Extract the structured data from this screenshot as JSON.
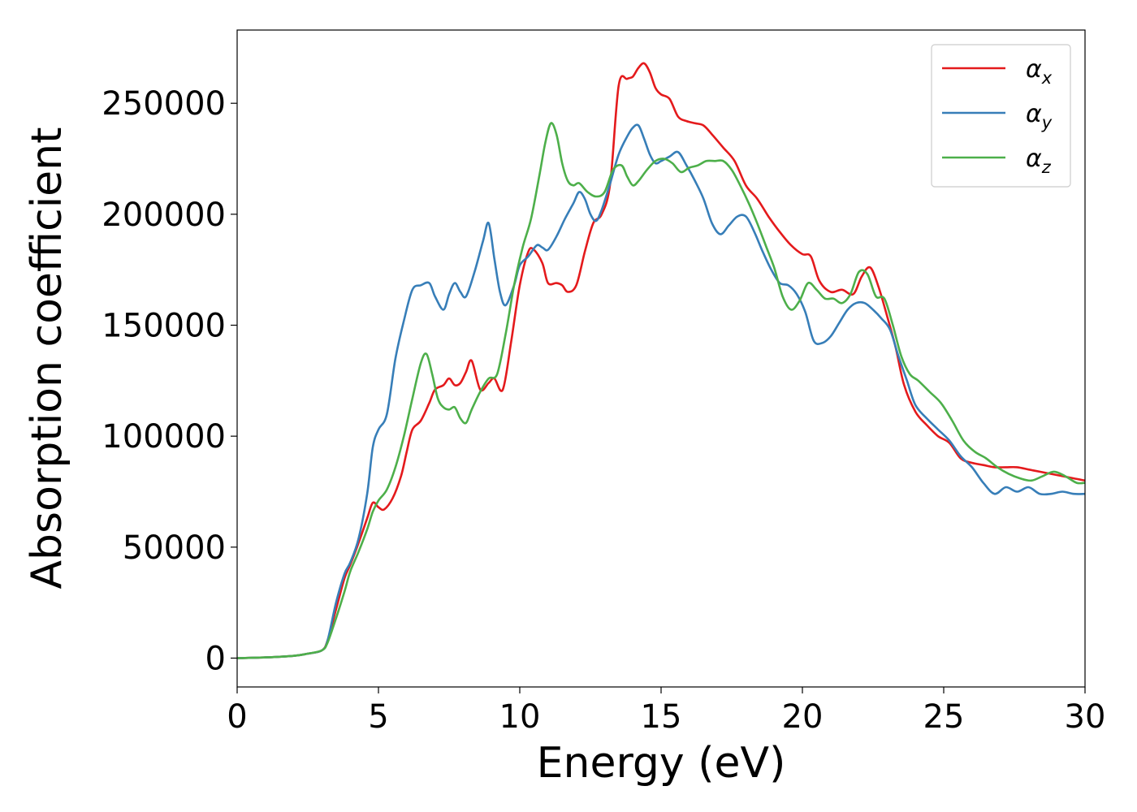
{
  "chart_data": {
    "type": "line",
    "xlabel": "Energy (eV)",
    "ylabel": "Absorption coefficient",
    "xlim": [
      0,
      30
    ],
    "ylim": [
      -13000,
      283000
    ],
    "xticks": [
      0,
      5,
      10,
      15,
      20,
      25,
      30
    ],
    "yticks": [
      0,
      50000,
      100000,
      150000,
      200000,
      250000
    ],
    "grid": false,
    "legend_position": "top-right",
    "series": [
      {
        "name": "α",
        "subscript": "x",
        "color": "#e41a1c",
        "x": [
          0,
          1,
          2,
          2.5,
          3,
          3.2,
          3.5,
          3.8,
          4.0,
          4.3,
          4.6,
          4.8,
          5.0,
          5.2,
          5.5,
          5.8,
          6.0,
          6.2,
          6.5,
          6.8,
          7.0,
          7.3,
          7.5,
          7.7,
          7.9,
          8.1,
          8.3,
          8.6,
          8.9,
          9.1,
          9.4,
          9.7,
          10.0,
          10.3,
          10.5,
          10.8,
          11.0,
          11.3,
          11.5,
          11.7,
          12.0,
          12.3,
          12.6,
          12.9,
          13.2,
          13.5,
          13.8,
          14.0,
          14.2,
          14.4,
          14.6,
          14.8,
          15.0,
          15.3,
          15.6,
          15.9,
          16.2,
          16.5,
          16.8,
          17.2,
          17.6,
          18.0,
          18.4,
          18.8,
          19.2,
          19.6,
          20.0,
          20.3,
          20.6,
          21.0,
          21.4,
          21.8,
          22.1,
          22.4,
          22.7,
          23.0,
          23.3,
          23.6,
          24.0,
          24.4,
          24.8,
          25.2,
          25.6,
          26.0,
          26.4,
          26.8,
          27.2,
          27.6,
          28.0,
          28.4,
          28.8,
          29.2,
          29.6,
          30.0
        ],
        "values": [
          0,
          300,
          1000,
          2000,
          3500,
          8000,
          22000,
          36000,
          42000,
          52000,
          63000,
          70000,
          68000,
          67000,
          72000,
          82000,
          93000,
          103000,
          107000,
          115000,
          121000,
          123000,
          126000,
          123000,
          124000,
          129000,
          134000,
          121000,
          124000,
          126000,
          121000,
          143000,
          168000,
          183000,
          184000,
          178000,
          169000,
          169000,
          168000,
          165000,
          168000,
          183000,
          196000,
          200000,
          214000,
          258000,
          261000,
          262000,
          266000,
          268000,
          264000,
          257000,
          254000,
          252000,
          244000,
          242000,
          241000,
          240000,
          236000,
          230000,
          224000,
          213000,
          207000,
          199000,
          192000,
          186000,
          182000,
          181000,
          170000,
          165000,
          166000,
          164000,
          172000,
          176000,
          167000,
          154000,
          140000,
          123000,
          111000,
          105000,
          100000,
          97000,
          90000,
          88000,
          87000,
          86000,
          86000,
          86000,
          85000,
          84000,
          83000,
          82000,
          81000,
          80000
        ]
      },
      {
        "name": "α",
        "subscript": "y",
        "color": "#377eb8",
        "x": [
          0,
          1,
          2,
          2.5,
          3,
          3.2,
          3.5,
          3.8,
          4.0,
          4.3,
          4.6,
          4.8,
          5.0,
          5.3,
          5.6,
          5.9,
          6.2,
          6.5,
          6.8,
          7.0,
          7.3,
          7.5,
          7.7,
          7.9,
          8.1,
          8.4,
          8.7,
          8.9,
          9.1,
          9.3,
          9.5,
          9.8,
          10.0,
          10.3,
          10.6,
          10.8,
          11.0,
          11.3,
          11.6,
          11.9,
          12.1,
          12.3,
          12.5,
          12.7,
          12.9,
          13.2,
          13.5,
          13.8,
          14.0,
          14.2,
          14.4,
          14.6,
          14.8,
          15.0,
          15.3,
          15.6,
          15.9,
          16.2,
          16.5,
          16.8,
          17.1,
          17.4,
          17.7,
          18.0,
          18.3,
          18.6,
          18.9,
          19.2,
          19.5,
          19.8,
          20.1,
          20.4,
          20.7,
          21.0,
          21.3,
          21.6,
          21.9,
          22.2,
          22.5,
          22.8,
          23.1,
          23.4,
          23.7,
          24.0,
          24.4,
          24.8,
          25.2,
          25.6,
          26.0,
          26.4,
          26.8,
          27.2,
          27.6,
          28.0,
          28.4,
          28.8,
          29.2,
          29.6,
          30.0
        ],
        "values": [
          0,
          300,
          1000,
          2000,
          3500,
          8000,
          25000,
          38000,
          43000,
          54000,
          74000,
          95000,
          103000,
          110000,
          135000,
          152000,
          166000,
          168000,
          169000,
          163000,
          157000,
          164000,
          169000,
          165000,
          163000,
          174000,
          188000,
          196000,
          180000,
          165000,
          159000,
          168000,
          177000,
          181000,
          186000,
          185000,
          184000,
          190000,
          198000,
          205000,
          210000,
          207000,
          200000,
          197000,
          202000,
          214000,
          227000,
          235000,
          239000,
          240000,
          234000,
          227000,
          223000,
          224000,
          226000,
          228000,
          222000,
          215000,
          207000,
          196000,
          191000,
          195000,
          199000,
          199000,
          192000,
          183000,
          175000,
          169000,
          168000,
          164000,
          156000,
          143000,
          142000,
          145000,
          151000,
          157000,
          160000,
          160000,
          157000,
          153000,
          148000,
          136000,
          125000,
          114000,
          108000,
          103000,
          98000,
          91000,
          86000,
          79000,
          74000,
          77000,
          75000,
          77000,
          74000,
          74000,
          75000,
          74000,
          74000
        ]
      },
      {
        "name": "α",
        "subscript": "z",
        "color": "#4daf4a",
        "x": [
          0,
          1,
          2,
          2.5,
          3,
          3.2,
          3.5,
          3.8,
          4.0,
          4.3,
          4.6,
          4.8,
          5.0,
          5.3,
          5.6,
          5.9,
          6.2,
          6.5,
          6.7,
          6.9,
          7.1,
          7.3,
          7.5,
          7.7,
          7.9,
          8.1,
          8.3,
          8.6,
          8.9,
          9.2,
          9.5,
          9.8,
          10.1,
          10.4,
          10.7,
          10.9,
          11.1,
          11.3,
          11.5,
          11.7,
          11.9,
          12.1,
          12.4,
          12.7,
          13.0,
          13.3,
          13.6,
          13.8,
          14.0,
          14.2,
          14.5,
          14.8,
          15.1,
          15.4,
          15.7,
          16.0,
          16.3,
          16.6,
          16.9,
          17.2,
          17.5,
          17.8,
          18.1,
          18.4,
          18.7,
          19.0,
          19.3,
          19.6,
          19.9,
          20.2,
          20.5,
          20.8,
          21.1,
          21.4,
          21.7,
          22.0,
          22.3,
          22.6,
          22.9,
          23.2,
          23.5,
          23.8,
          24.1,
          24.5,
          24.9,
          25.3,
          25.7,
          26.1,
          26.5,
          26.9,
          27.3,
          27.7,
          28.1,
          28.5,
          28.9,
          29.3,
          29.7,
          30.0
        ],
        "values": [
          0,
          300,
          1000,
          2000,
          3500,
          7000,
          18000,
          30000,
          39000,
          48000,
          58000,
          66000,
          71000,
          76000,
          86000,
          100000,
          117000,
          133000,
          137000,
          128000,
          117000,
          113000,
          112000,
          113000,
          108000,
          106000,
          112000,
          120000,
          126000,
          128000,
          146000,
          168000,
          185000,
          198000,
          218000,
          232000,
          241000,
          236000,
          223000,
          215000,
          213000,
          214000,
          210000,
          208000,
          210000,
          220000,
          222000,
          217000,
          213000,
          215000,
          220000,
          224000,
          225000,
          223000,
          219000,
          221000,
          222000,
          224000,
          224000,
          224000,
          220000,
          213000,
          205000,
          196000,
          186000,
          176000,
          163000,
          157000,
          161000,
          169000,
          166000,
          162000,
          162000,
          160000,
          164000,
          174000,
          173000,
          163000,
          162000,
          150000,
          136000,
          128000,
          125000,
          120000,
          115000,
          107000,
          98000,
          93000,
          90000,
          86000,
          83000,
          81000,
          80000,
          82000,
          84000,
          82000,
          79000,
          79000
        ]
      }
    ]
  }
}
